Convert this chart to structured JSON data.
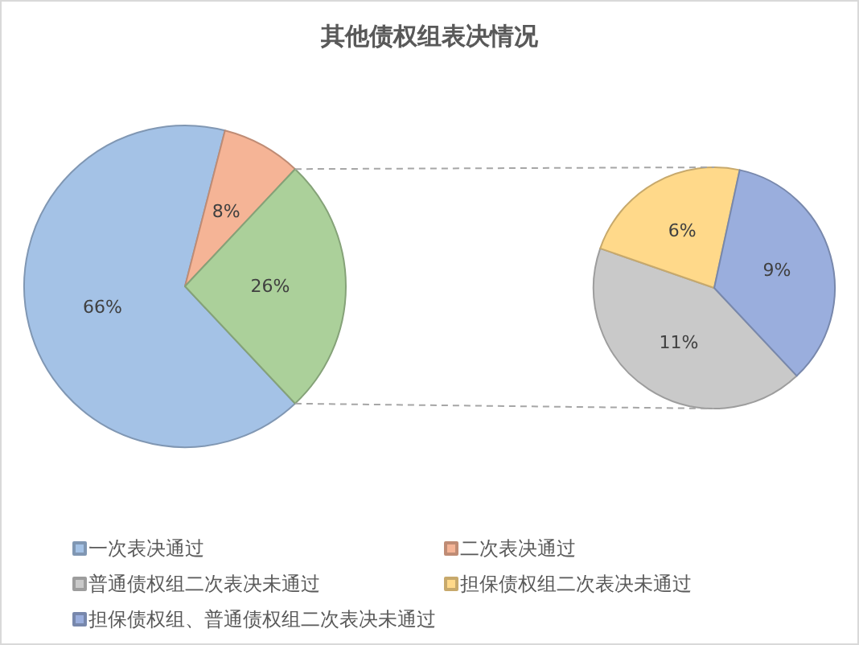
{
  "chart_data": [
    {
      "type": "pie",
      "title": "其他债权组表决情况",
      "categories": [
        "一次表决通过",
        "二次表决通过",
        null
      ],
      "values": [
        66,
        8,
        26
      ],
      "value_labels": [
        "66%",
        "8%",
        "26%"
      ],
      "colors": [
        "#a4c2e6",
        "#f5b496",
        "#abd09a"
      ],
      "legend": "bottom"
    },
    {
      "type": "pie",
      "categories": [
        "普通债权组二次表决未通过",
        "担保债权组二次表决未通过",
        "担保债权组、普通债权组二次表决未通过"
      ],
      "values": [
        11,
        6,
        9
      ],
      "value_labels": [
        "11%",
        "6%",
        "9%"
      ],
      "colors": [
        "#c9c9c9",
        "#ffd98a",
        "#9aaedd"
      ],
      "legend": "bottom"
    }
  ]
}
